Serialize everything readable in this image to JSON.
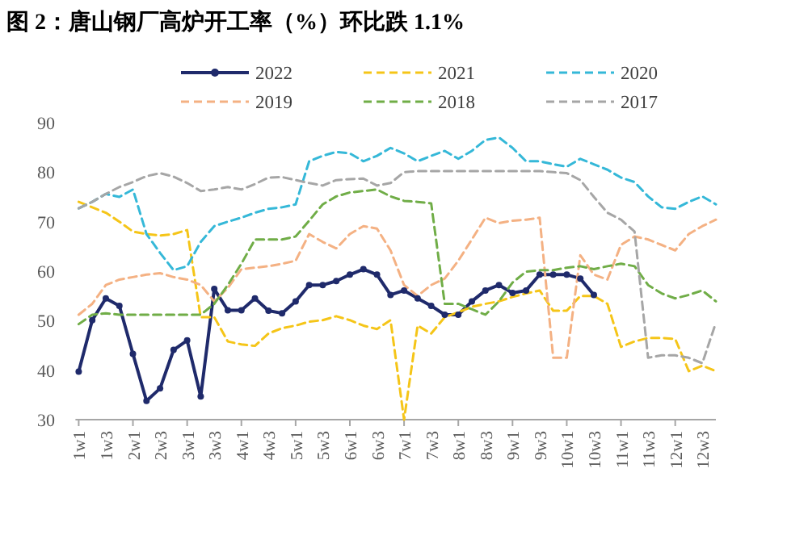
{
  "chart_data": {
    "type": "line",
    "title": "图 2：唐山钢厂高炉开工率（%）环比跌 1.1%",
    "categories": [
      "1w1",
      null,
      "1w3",
      null,
      "2w1",
      null,
      "2w3",
      null,
      "3w1",
      null,
      "3w3",
      null,
      "4w1",
      null,
      "4w3",
      null,
      "5w1",
      null,
      "5w3",
      null,
      "6w1",
      null,
      "6w3",
      null,
      "7w1",
      null,
      "7w3",
      null,
      "8w1",
      null,
      "8w3",
      null,
      "9w1",
      null,
      "9w3",
      null,
      "10w1",
      null,
      "10w3",
      null,
      "11w1",
      null,
      "11w3",
      null,
      "12w1",
      null,
      "12w3",
      null
    ],
    "ylim": [
      30,
      90
    ],
    "yticks": [
      30,
      40,
      50,
      60,
      70,
      80,
      90
    ],
    "grid": false,
    "legend": "top",
    "series": [
      {
        "name": "2022",
        "color": "#1f2a6b",
        "line_style": "solid",
        "marker": "circle",
        "values": [
          39.7,
          50.1,
          54.5,
          53,
          43.3,
          33.8,
          36.3,
          44.1,
          46,
          34.7,
          56.4,
          52.1,
          52.1,
          54.5,
          52,
          51.5,
          53.9,
          57.2,
          57.2,
          58,
          59.3,
          60.4,
          59.3,
          55.2,
          56.1,
          54.5,
          53,
          51.2,
          51.2,
          53.9,
          56.1,
          57.2,
          55.6,
          56.1,
          59.3,
          59.3,
          59.3,
          58.5,
          55.2,
          null,
          null,
          null,
          null,
          null,
          null,
          null,
          null,
          null
        ]
      },
      {
        "name": "2021",
        "color": "#f5c518",
        "line_style": "dashed",
        "marker": "none",
        "values": [
          74,
          72.9,
          71.8,
          70,
          68,
          67.5,
          67.2,
          67.5,
          68.3,
          50.7,
          50.7,
          45.8,
          45.2,
          44.9,
          47.4,
          48.5,
          49,
          49.8,
          50.1,
          50.9,
          50.1,
          49,
          48.3,
          50.1,
          30,
          49,
          47.4,
          50.7,
          51.7,
          52.8,
          53.4,
          53.9,
          54.8,
          55.5,
          56.1,
          52,
          52,
          55,
          55,
          53.4,
          44.7,
          45.8,
          46.5,
          46.5,
          46.3,
          39.8,
          40.9,
          39.8
        ]
      },
      {
        "name": "2020",
        "color": "#35b8d8",
        "line_style": "dashed",
        "marker": "none",
        "values": [
          72.7,
          74,
          75.6,
          75,
          76.5,
          67.5,
          63.7,
          60.2,
          61,
          65.9,
          69.1,
          70,
          70.8,
          71.8,
          72.6,
          72.9,
          73.5,
          82.2,
          83.3,
          84.1,
          83.8,
          82.2,
          83.3,
          84.9,
          83.8,
          82.2,
          83.3,
          84.3,
          82.7,
          84.3,
          86.5,
          87,
          84.9,
          82.2,
          82.2,
          81.6,
          81.1,
          82.7,
          81.6,
          80.5,
          78.9,
          78,
          75.1,
          72.9,
          72.6,
          74,
          75.1,
          73.5
        ]
      },
      {
        "name": "2019",
        "color": "#f4b183",
        "line_style": "dashed",
        "marker": "none",
        "values": [
          51.2,
          53.4,
          57.2,
          58.3,
          58.8,
          59.3,
          59.6,
          58.8,
          58.3,
          57.2,
          53.9,
          56.6,
          60.4,
          60.7,
          61,
          61.5,
          62.1,
          67.5,
          65.9,
          64.6,
          67.5,
          69.1,
          68.6,
          64.2,
          57.2,
          55,
          57.2,
          58.5,
          62.1,
          66.4,
          70.8,
          69.7,
          70.2,
          70.4,
          70.8,
          42.5,
          42.5,
          63.2,
          59.3,
          58.3,
          65.3,
          67,
          66.4,
          65.3,
          64.2,
          67.5,
          69.1,
          70.4
        ]
      },
      {
        "name": "2018",
        "color": "#70ad47",
        "line_style": "dashed",
        "marker": "none",
        "values": [
          49.3,
          51.2,
          51.5,
          51.2,
          51.2,
          51.2,
          51.2,
          51.2,
          51.2,
          51.2,
          53.4,
          57.2,
          61.5,
          66.4,
          66.4,
          66.4,
          67,
          70.2,
          73.5,
          75.1,
          75.9,
          76.2,
          76.5,
          75.1,
          74.2,
          74,
          73.7,
          53.4,
          53.4,
          52.3,
          51.2,
          53.9,
          57.7,
          59.9,
          60.2,
          60.2,
          60.7,
          61,
          60.4,
          61,
          61.5,
          61,
          57.2,
          55.5,
          54.5,
          55.2,
          56.1,
          53.9
        ]
      },
      {
        "name": "2017",
        "color": "#a6a6a6",
        "line_style": "dashed",
        "marker": "none",
        "values": [
          72.7,
          74,
          75.6,
          77,
          78,
          79.2,
          79.8,
          79.1,
          77.8,
          76.2,
          76.5,
          77,
          76.5,
          77.6,
          78.9,
          79,
          78.4,
          77.8,
          77.3,
          78.4,
          78.6,
          78.7,
          77.3,
          77.8,
          80,
          80.2,
          80.2,
          80.2,
          80.2,
          80.2,
          80.2,
          80.2,
          80.2,
          80.2,
          80.2,
          80,
          79.8,
          78.4,
          75,
          71.8,
          70.4,
          68,
          42.5,
          43,
          43,
          42.5,
          41.4,
          49.6
        ]
      }
    ]
  }
}
